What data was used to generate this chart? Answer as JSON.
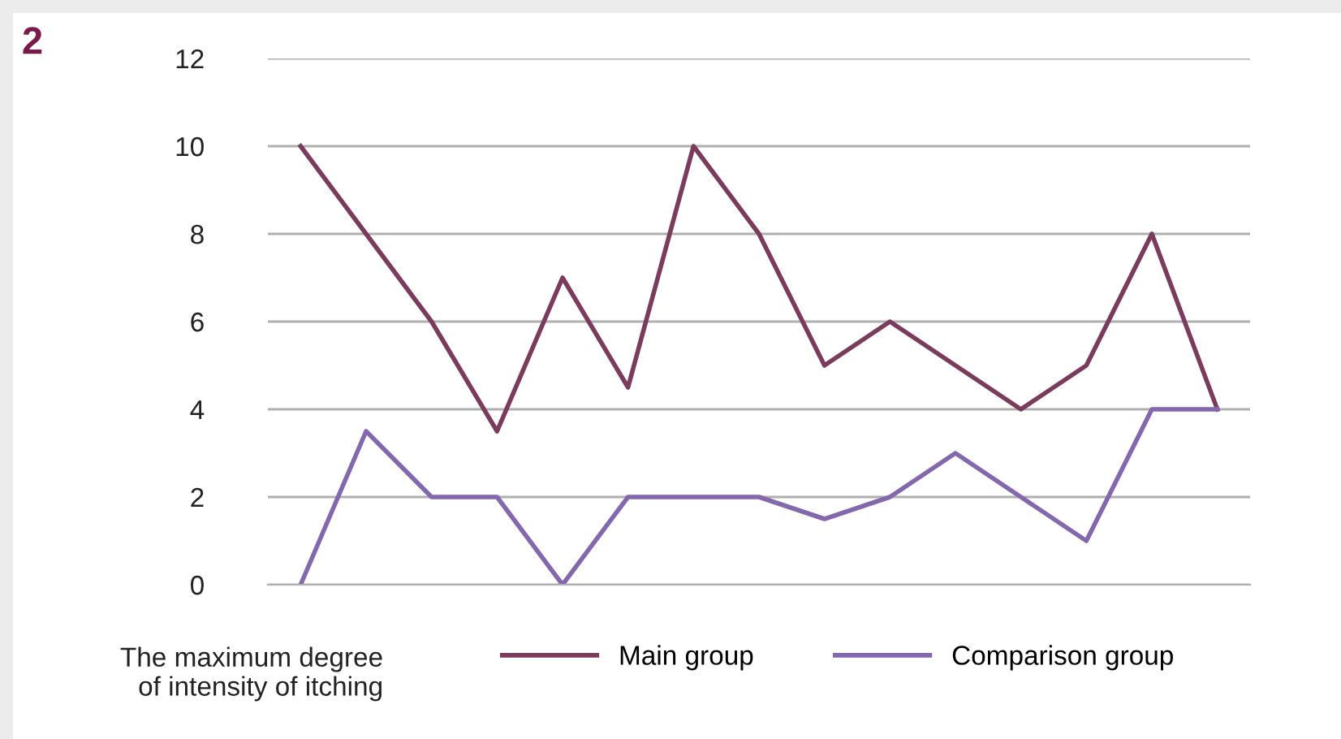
{
  "chart_data": {
    "type": "line",
    "categories": [
      null,
      null,
      null,
      null,
      null,
      null,
      null,
      null,
      null,
      null,
      null,
      null,
      null,
      null,
      null
    ],
    "series": [
      {
        "name": "Main group",
        "color": "#7b3b5c",
        "values": [
          10,
          8,
          6,
          3.5,
          7,
          4.5,
          10,
          8,
          5,
          6,
          5,
          4,
          5,
          8,
          4
        ]
      },
      {
        "name": "Comparison group",
        "color": "#8468ae",
        "values": [
          0,
          3.5,
          2,
          2,
          0,
          2,
          2,
          2,
          1.5,
          2,
          3,
          2,
          1,
          4,
          4
        ]
      }
    ],
    "ylim": [
      0,
      12
    ],
    "yticks": [
      0,
      2,
      4,
      6,
      8,
      10,
      12
    ],
    "grid": "y",
    "legend": "bottom",
    "marker": "none",
    "line_style": "solid",
    "annotations": [
      "2",
      "The maximum degree\nof intensity of itching"
    ]
  }
}
